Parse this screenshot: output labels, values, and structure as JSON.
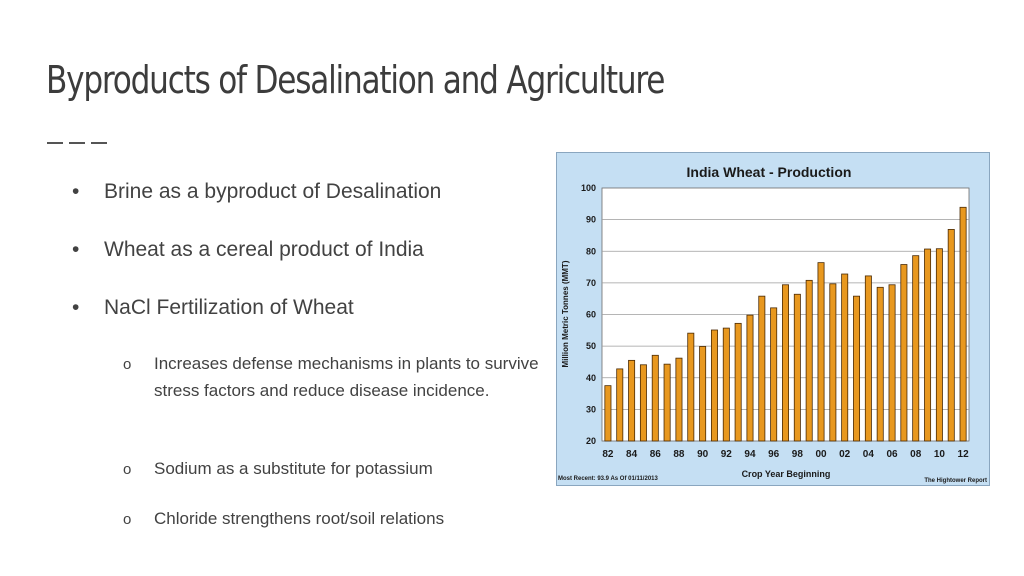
{
  "slide": {
    "title": "Byproducts of Desalination and Agriculture",
    "bullets": [
      {
        "marker": "•",
        "text": "Brine as a byproduct of Desalination"
      },
      {
        "marker": "•",
        "text": "Wheat as a cereal product of India"
      },
      {
        "marker": "•",
        "text": "NaCl Fertilization of Wheat"
      }
    ],
    "sub_bullets": [
      {
        "marker": "o",
        "text": "Increases defense mechanisms in plants to survive stress factors and reduce disease incidence."
      },
      {
        "marker": "o",
        "text": "Sodium as a substitute for potassium"
      },
      {
        "marker": "o",
        "text": "Chloride strengthens root/soil relations"
      }
    ]
  },
  "chart_data": {
    "type": "bar",
    "title": "India Wheat - Production",
    "ylabel": "Million Metric Tonnes (MMT)",
    "xlabel": "Crop Year Beginning",
    "ylim": [
      20,
      100
    ],
    "yticks": [
      20,
      30,
      40,
      50,
      60,
      70,
      80,
      90,
      100
    ],
    "grid": true,
    "x": [
      "1982",
      "1983",
      "1984",
      "1985",
      "1986",
      "1987",
      "1988",
      "1989",
      "1990",
      "1991",
      "1992",
      "1993",
      "1994",
      "1995",
      "1996",
      "1997",
      "1998",
      "1999",
      "2000",
      "2001",
      "2002",
      "2003",
      "2004",
      "2005",
      "2006",
      "2007",
      "2008",
      "2009",
      "2010",
      "2011",
      "2012"
    ],
    "xtick_labels": [
      "82",
      "84",
      "86",
      "88",
      "90",
      "92",
      "94",
      "96",
      "98",
      "00",
      "02",
      "04",
      "06",
      "08",
      "10",
      "12"
    ],
    "values": [
      37.5,
      42.8,
      45.5,
      44.1,
      47.1,
      44.3,
      46.2,
      54.1,
      49.9,
      55.1,
      55.7,
      57.2,
      59.8,
      65.8,
      62.1,
      69.4,
      66.4,
      70.8,
      76.4,
      69.7,
      72.8,
      65.8,
      72.2,
      68.6,
      69.4,
      75.8,
      78.6,
      80.7,
      80.8,
      86.9,
      93.9
    ],
    "footnote_left": "Most Recent: 93.9 As Of 01/11/2013",
    "footnote_right": "The Hightower Report",
    "colors": {
      "bar": "#e8981f",
      "bar_edge": "#4a2a05",
      "frame_bg": "#c5dff3",
      "plot_bg": "#ffffff",
      "grid": "#9c9c9c"
    }
  }
}
